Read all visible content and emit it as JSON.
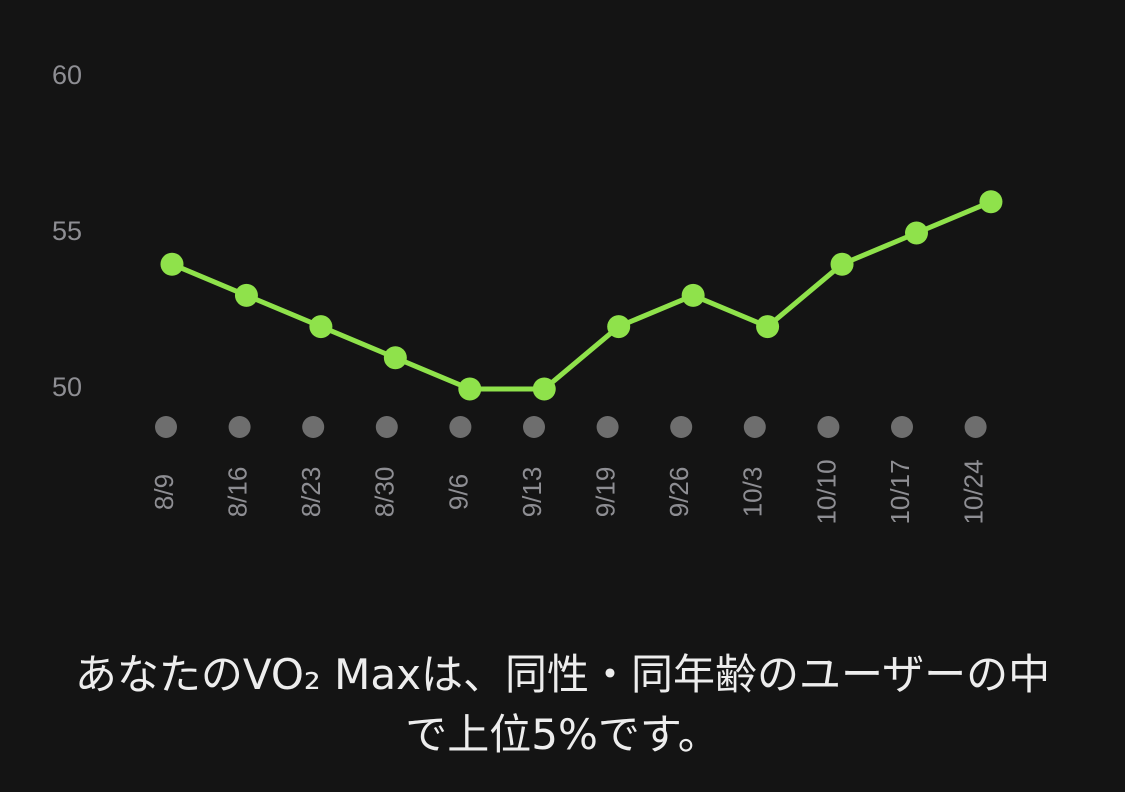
{
  "chart_data": {
    "type": "line",
    "categories": [
      "8/9",
      "8/16",
      "8/23",
      "8/30",
      "9/6",
      "9/13",
      "9/19",
      "9/26",
      "10/3",
      "10/10",
      "10/17",
      "10/24"
    ],
    "values": [
      54,
      53,
      52,
      51,
      50,
      50,
      52,
      53,
      52,
      54,
      55,
      56
    ],
    "color": "#8fe24b",
    "ylim": [
      50,
      60
    ],
    "yticks": [
      50,
      55,
      60
    ],
    "grid": false
  },
  "caption": "あなたのVO₂ Maxは、同性・同年齢のユーザーの中で上位5%です。"
}
